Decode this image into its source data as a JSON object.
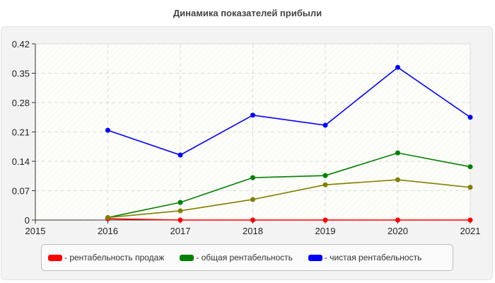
{
  "chart_data": {
    "type": "line",
    "title": "Динамика показателей прибыли",
    "xlabel": "",
    "ylabel": "",
    "x": [
      "2015",
      "2016",
      "2017",
      "2018",
      "2019",
      "2020",
      "2021"
    ],
    "y_ticks": [
      "0",
      "0.07",
      "0.14",
      "0.21",
      "0.28",
      "0.35",
      "0.42"
    ],
    "ylim": [
      0,
      0.42
    ],
    "grid": true,
    "legend_position": "bottom",
    "series": [
      {
        "name": "рентабельность продаж",
        "color": "#ff0000",
        "x": [
          "2016",
          "2017",
          "2018",
          "2019",
          "2020",
          "2021"
        ],
        "values": [
          0.003,
          0.0,
          0.0,
          0.0,
          0.0,
          0.0
        ]
      },
      {
        "name": "общая рентабельность",
        "color": "#008000",
        "x": [
          "2016",
          "2017",
          "2018",
          "2019",
          "2020",
          "2021"
        ],
        "values": [
          0.006,
          0.042,
          0.101,
          0.106,
          0.16,
          0.127
        ]
      },
      {
        "name": "",
        "color": "#808000",
        "x": [
          "2016",
          "2017",
          "2018",
          "2019",
          "2020",
          "2021"
        ],
        "values": [
          0.006,
          0.022,
          0.049,
          0.084,
          0.096,
          0.078
        ]
      },
      {
        "name": "чистая рентабельность",
        "color": "#0000ff",
        "x": [
          "2016",
          "2017",
          "2018",
          "2019",
          "2020",
          "2021"
        ],
        "values": [
          0.214,
          0.155,
          0.25,
          0.226,
          0.364,
          0.245
        ]
      }
    ]
  },
  "legend": [
    {
      "label": "- рентабельность продаж",
      "color": "#ff0000"
    },
    {
      "label": "- общая рентабельность",
      "color": "#008000"
    },
    {
      "label": "- чистая рентабельность",
      "color": "#0000ff"
    }
  ]
}
